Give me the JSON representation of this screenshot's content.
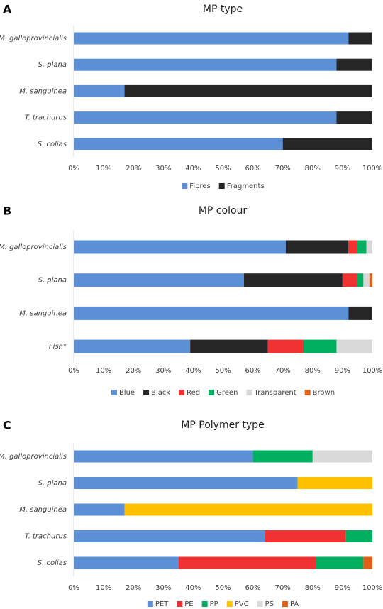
{
  "chart_data": [
    {
      "type": "stacked_bar_horizontal",
      "panel_label": "A",
      "title": "MP type",
      "categories": [
        "M. galloprovincialis",
        "S. plana",
        "M. sanguinea",
        "T. trachurus",
        "S. colias"
      ],
      "series": [
        {
          "name": "Fibres",
          "color": "#5b8fd6",
          "values": [
            92,
            88,
            17,
            88,
            70
          ]
        },
        {
          "name": "Fragments",
          "color": "#262626",
          "values": [
            8,
            12,
            83,
            12,
            30
          ]
        }
      ],
      "xlim": [
        0,
        100
      ],
      "xticks": [
        {
          "value": 0,
          "label": "0%"
        },
        {
          "value": 10,
          "label": "10%"
        },
        {
          "value": 20,
          "label": "20%"
        },
        {
          "value": 30,
          "label": "30%"
        },
        {
          "value": 40,
          "label": "40%"
        },
        {
          "value": 50,
          "label": "50%"
        },
        {
          "value": 60,
          "label": "60%"
        },
        {
          "value": 70,
          "label": "70%"
        },
        {
          "value": 80,
          "label": "80%"
        },
        {
          "value": 90,
          "label": "90%"
        },
        {
          "value": 100,
          "label": "100%"
        }
      ],
      "legend": "bottom"
    },
    {
      "type": "stacked_bar_horizontal",
      "panel_label": "B",
      "title": "MP colour",
      "categories": [
        "M. galloprovincialis",
        "S. plana",
        "M. sanguinea",
        "Fish*"
      ],
      "series": [
        {
          "name": "Blue",
          "color": "#5b8fd6",
          "values": [
            71,
            57,
            92,
            39
          ]
        },
        {
          "name": "Black",
          "color": "#262626",
          "values": [
            21,
            33,
            8,
            26
          ]
        },
        {
          "name": "Red",
          "color": "#f03232",
          "values": [
            3,
            5,
            0,
            12
          ]
        },
        {
          "name": "Green",
          "color": "#00b060",
          "values": [
            3,
            2,
            0,
            11
          ]
        },
        {
          "name": "Transparent",
          "color": "#d9d9d9",
          "values": [
            2,
            2,
            0,
            12
          ]
        },
        {
          "name": "Brown",
          "color": "#e0601a",
          "values": [
            0,
            1,
            0,
            0
          ]
        }
      ],
      "xlim": [
        0,
        100
      ],
      "xticks": [
        {
          "value": 0,
          "label": "0%"
        },
        {
          "value": 10,
          "label": "10%"
        },
        {
          "value": 20,
          "label": "20%"
        },
        {
          "value": 30,
          "label": "30%"
        },
        {
          "value": 40,
          "label": "40%"
        },
        {
          "value": 50,
          "label": "50%"
        },
        {
          "value": 60,
          "label": "60%"
        },
        {
          "value": 70,
          "label": "70%"
        },
        {
          "value": 80,
          "label": "80%"
        },
        {
          "value": 90,
          "label": "90%"
        },
        {
          "value": 100,
          "label": "100%"
        }
      ],
      "legend": "bottom"
    },
    {
      "type": "stacked_bar_horizontal",
      "panel_label": "C",
      "title": "MP Polymer type",
      "categories": [
        "M. galloprovincialis",
        "S. plana",
        "M. sanguinea",
        "T. trachurus",
        "S. colias"
      ],
      "series": [
        {
          "name": "PET",
          "color": "#5b8fd6",
          "values": [
            60,
            75,
            17,
            64,
            35
          ]
        },
        {
          "name": "PE",
          "color": "#f03232",
          "values": [
            0,
            0,
            0,
            27,
            46
          ]
        },
        {
          "name": "PP",
          "color": "#00b060",
          "values": [
            20,
            0,
            0,
            9,
            16
          ]
        },
        {
          "name": "PVC",
          "color": "#ffc000",
          "values": [
            0,
            25,
            83,
            0,
            0
          ]
        },
        {
          "name": "PS",
          "color": "#d9d9d9",
          "values": [
            20,
            0,
            0,
            0,
            0
          ]
        },
        {
          "name": "PA",
          "color": "#e0601a",
          "values": [
            0,
            0,
            0,
            0,
            3
          ]
        }
      ],
      "xlim": [
        0,
        100
      ],
      "xticks": [
        {
          "value": 0,
          "label": "0%"
        },
        {
          "value": 10,
          "label": "10%"
        },
        {
          "value": 20,
          "label": "20%"
        },
        {
          "value": 30,
          "label": "30%"
        },
        {
          "value": 40,
          "label": "40%"
        },
        {
          "value": 50,
          "label": "50%"
        },
        {
          "value": 60,
          "label": "60%"
        },
        {
          "value": 70,
          "label": "70%"
        },
        {
          "value": 80,
          "label": "80%"
        },
        {
          "value": 90,
          "label": "90%"
        },
        {
          "value": 100,
          "label": "100%"
        }
      ],
      "legend": "bottom"
    }
  ]
}
